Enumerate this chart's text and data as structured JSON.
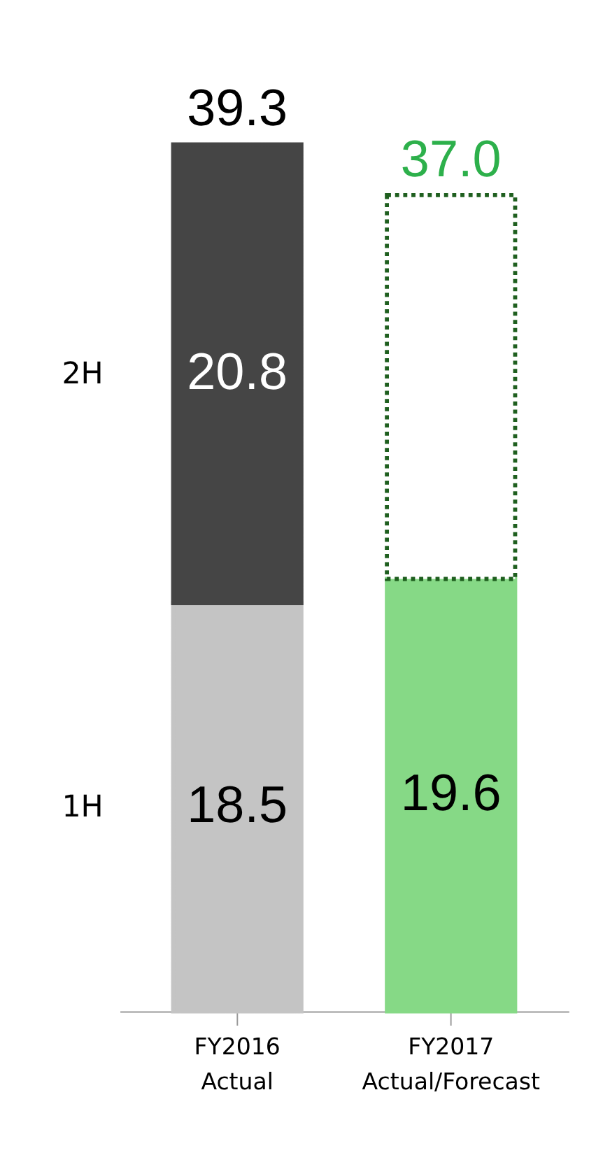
{
  "chart_data": {
    "type": "bar",
    "stacked": true,
    "categories": [
      "FY2016\nActual",
      "FY2017\nActual/Forecast"
    ],
    "series": [
      {
        "name": "1H",
        "colors": [
          "#c4c4c4",
          "#86d986"
        ],
        "values": [
          18.5,
          19.6
        ],
        "value_labels": [
          "18.5",
          "19.6"
        ]
      },
      {
        "name": "2H",
        "colors": [
          "#454545",
          "#ffffff"
        ],
        "values": [
          20.8,
          17.4
        ],
        "value_labels": [
          "20.8",
          null
        ]
      }
    ],
    "totals": [
      "39.3",
      "37.0"
    ]
  }
}
